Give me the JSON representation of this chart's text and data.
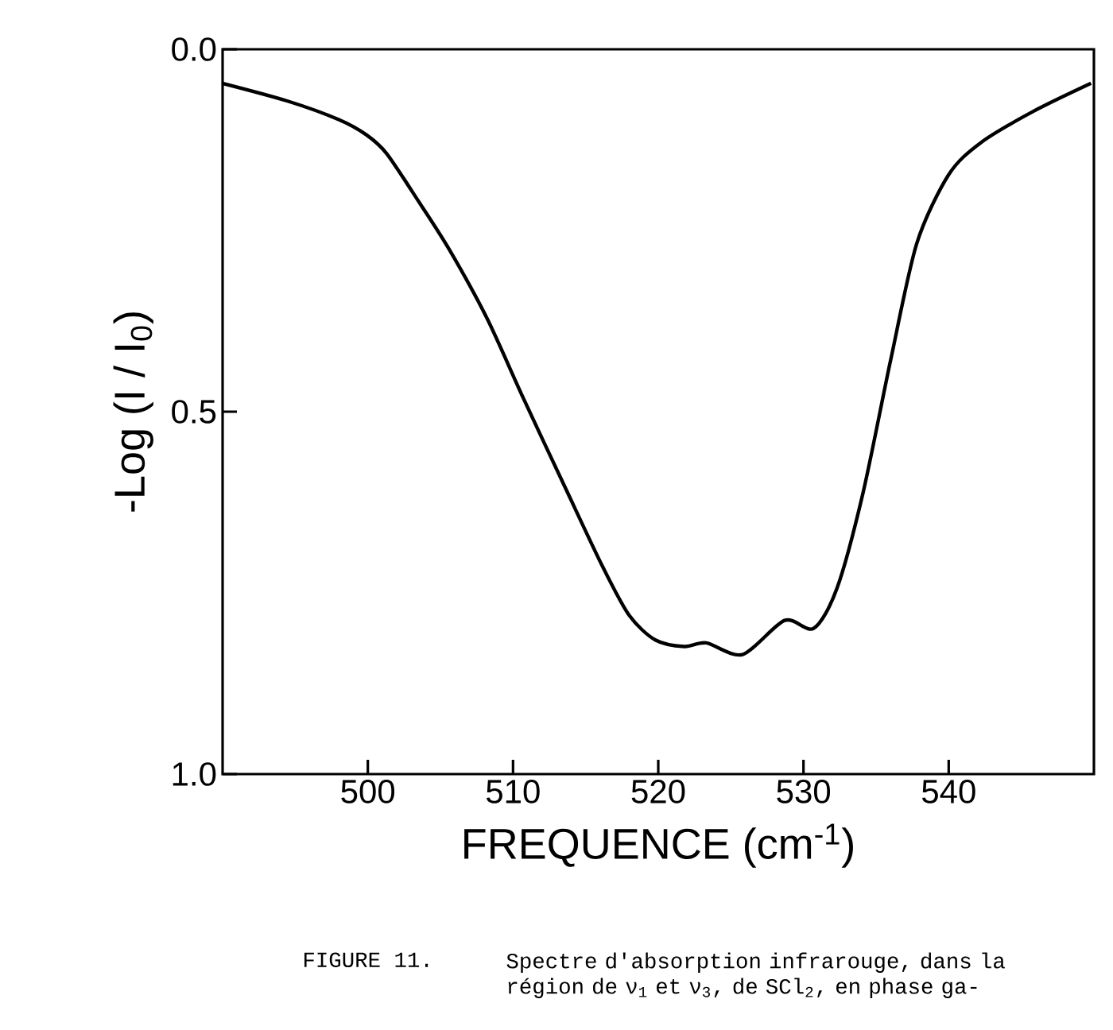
{
  "chart_data": {
    "type": "line",
    "xlabel": "FREQUENCE (cm$^{-1}$)",
    "ylabel": "-Log (I / I$_{0}$)",
    "annotations": [
      "FIGURE 11.",
      "Spectre d'absorption infrarouge, dans la région de ν$_{1}$ et ν$_{3}$, de SCl$_{2}$, en phase ga-"
    ],
    "x": [
      490,
      494.4,
      498.0,
      499.9,
      501.3,
      503.5,
      505.6,
      508.2,
      510.7,
      513.6,
      516.2,
      518.0,
      519.8,
      521.8,
      523.3,
      525.8,
      528.7,
      530.7,
      532.3,
      534.1,
      536.0,
      537.8,
      540.0,
      542.2,
      545.8,
      549.8
    ],
    "series": [
      {
        "color": "#000000",
        "line_style": "solid",
        "values": [
          0.047,
          0.071,
          0.097,
          0.118,
          0.144,
          0.21,
          0.276,
          0.371,
          0.481,
          0.605,
          0.715,
          0.781,
          0.815,
          0.824,
          0.819,
          0.835,
          0.788,
          0.799,
          0.744,
          0.612,
          0.429,
          0.268,
          0.173,
          0.129,
          0.086,
          0.047
        ]
      }
    ],
    "xlim": [
      490,
      550
    ],
    "ylim": [
      1.0,
      0.0
    ],
    "xticks": [
      500,
      510,
      520,
      530,
      540
    ],
    "yticks": [
      {
        "value": 0.0,
        "label": "0.0"
      },
      {
        "value": 0.5,
        "label": "0.5"
      },
      {
        "value": 1.0,
        "label": "1.0"
      }
    ],
    "marker": "none"
  }
}
